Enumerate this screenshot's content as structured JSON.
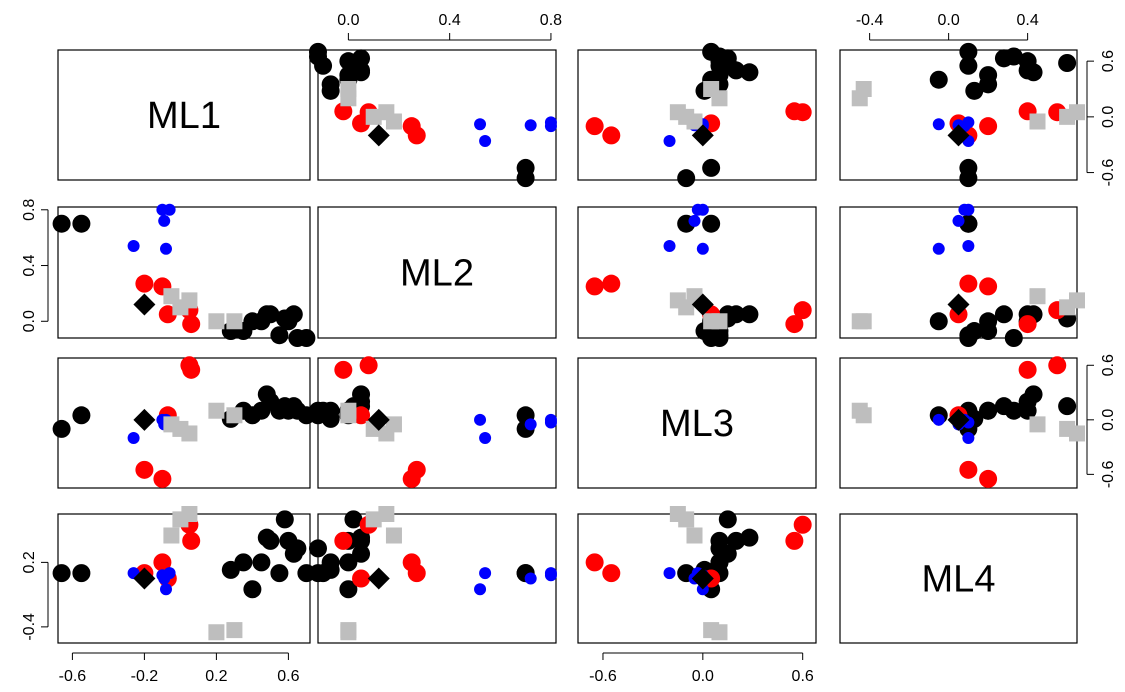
{
  "chart_data": {
    "type": "scatter",
    "title": "",
    "variables": [
      "ML1",
      "ML2",
      "ML3",
      "ML4"
    ],
    "axis_ranges": {
      "ML1": [
        -0.68,
        0.72
      ],
      "ML2": [
        -0.12,
        0.82
      ],
      "ML3": [
        -0.75,
        0.68
      ],
      "ML4": [
        -0.55,
        0.65
      ]
    },
    "axis_ticks": {
      "ML1": {
        "values": [
          -0.6,
          -0.2,
          0.2,
          0.6
        ],
        "labels": [
          "-0.6",
          "-0.2",
          "0.2",
          "0.6"
        ]
      },
      "ML2": {
        "values": [
          0.0,
          0.4,
          0.8
        ],
        "labels": [
          "0.0",
          "0.4",
          "0.8"
        ]
      },
      "ML3": {
        "values": [
          -0.6,
          0.0,
          0.6
        ],
        "labels": [
          "-0.6",
          "0.0",
          "0.6"
        ]
      },
      "ML4": {
        "values": [
          -0.4,
          0.2
        ],
        "labels": [
          "-0.4",
          "0.2"
        ]
      }
    },
    "top_ticks": {
      "ML2": {
        "values": [
          0.0,
          0.4,
          0.8
        ],
        "labels": [
          "0.0",
          "0.4",
          "0.8"
        ]
      },
      "ML4": {
        "values": [
          -0.4,
          0.0,
          0.4
        ],
        "labels": [
          "-0.4",
          "0.0",
          "0.4"
        ]
      }
    },
    "right_ticks": {
      "ML1": {
        "values": [
          -0.6,
          0.0,
          0.6
        ],
        "labels": [
          "-0.6",
          "0.0",
          "0.6"
        ]
      },
      "ML3": {
        "values": [
          -0.6,
          0.0,
          0.6
        ],
        "labels": [
          "-0.6",
          "0.0",
          "0.6"
        ]
      }
    },
    "grid": false,
    "legend": "none",
    "groups": [
      {
        "color": "#000000",
        "shape": "circle",
        "size": "large"
      },
      {
        "color": "#ff0000",
        "shape": "circle",
        "size": "large"
      },
      {
        "color": "#0000ff",
        "shape": "circle",
        "size": "small"
      },
      {
        "color": "#bebebe",
        "shape": "square",
        "size": "large"
      },
      {
        "color": "#000000",
        "shape": "diamond",
        "size": "large"
      }
    ],
    "points": [
      {
        "group": 0,
        "ML1": -0.66,
        "ML2": 0.7,
        "ML3": -0.1,
        "ML4": 0.1
      },
      {
        "group": 0,
        "ML1": -0.55,
        "ML2": 0.7,
        "ML3": 0.05,
        "ML4": 0.1
      },
      {
        "group": 0,
        "ML1": 0.28,
        "ML2": -0.07,
        "ML3": 0.01,
        "ML4": 0.13
      },
      {
        "group": 0,
        "ML1": 0.45,
        "ML2": 0.0,
        "ML3": 0.1,
        "ML4": 0.2
      },
      {
        "group": 0,
        "ML1": 0.5,
        "ML2": 0.05,
        "ML3": 0.2,
        "ML4": 0.4
      },
      {
        "group": 0,
        "ML1": 0.6,
        "ML2": 0.0,
        "ML3": 0.1,
        "ML4": 0.4
      },
      {
        "group": 0,
        "ML1": 0.63,
        "ML2": 0.05,
        "ML3": 0.15,
        "ML4": 0.28
      },
      {
        "group": 0,
        "ML1": 0.65,
        "ML2": -0.12,
        "ML3": 0.1,
        "ML4": 0.33
      },
      {
        "group": 0,
        "ML1": 0.7,
        "ML2": -0.12,
        "ML3": 0.05,
        "ML4": 0.1
      },
      {
        "group": 0,
        "ML1": 0.35,
        "ML2": -0.07,
        "ML3": 0.1,
        "ML4": 0.2
      },
      {
        "group": 0,
        "ML1": 0.48,
        "ML2": 0.05,
        "ML3": 0.28,
        "ML4": 0.43
      },
      {
        "group": 0,
        "ML1": 0.58,
        "ML2": 0.02,
        "ML3": 0.15,
        "ML4": 0.6
      },
      {
        "group": 0,
        "ML1": 0.4,
        "ML2": 0.0,
        "ML3": 0.05,
        "ML4": -0.05
      },
      {
        "group": 0,
        "ML1": 0.55,
        "ML2": -0.1,
        "ML3": 0.1,
        "ML4": 0.1
      },
      {
        "group": 1,
        "ML1": -0.2,
        "ML2": 0.27,
        "ML3": -0.55,
        "ML4": 0.1
      },
      {
        "group": 1,
        "ML1": -0.1,
        "ML2": 0.25,
        "ML3": -0.65,
        "ML4": 0.2
      },
      {
        "group": 1,
        "ML1": 0.05,
        "ML2": 0.08,
        "ML3": 0.6,
        "ML4": 0.55
      },
      {
        "group": 1,
        "ML1": 0.06,
        "ML2": -0.02,
        "ML3": 0.55,
        "ML4": 0.4
      },
      {
        "group": 1,
        "ML1": -0.07,
        "ML2": 0.05,
        "ML3": 0.05,
        "ML4": 0.05
      },
      {
        "group": 2,
        "ML1": -0.26,
        "ML2": 0.54,
        "ML3": -0.2,
        "ML4": 0.1
      },
      {
        "group": 2,
        "ML1": -0.1,
        "ML2": 0.8,
        "ML3": 0.0,
        "ML4": 0.08
      },
      {
        "group": 2,
        "ML1": -0.09,
        "ML2": 0.72,
        "ML3": -0.05,
        "ML4": 0.05
      },
      {
        "group": 2,
        "ML1": -0.08,
        "ML2": 0.52,
        "ML3": 0.0,
        "ML4": -0.05
      },
      {
        "group": 2,
        "ML1": -0.06,
        "ML2": 0.8,
        "ML3": -0.03,
        "ML4": 0.1
      },
      {
        "group": 3,
        "ML1": -0.05,
        "ML2": 0.18,
        "ML3": -0.05,
        "ML4": 0.45
      },
      {
        "group": 3,
        "ML1": 0.0,
        "ML2": 0.1,
        "ML3": -0.1,
        "ML4": 0.6
      },
      {
        "group": 3,
        "ML1": 0.05,
        "ML2": 0.15,
        "ML3": -0.15,
        "ML4": 0.65
      },
      {
        "group": 3,
        "ML1": 0.2,
        "ML2": 0.0,
        "ML3": 0.1,
        "ML4": -0.45
      },
      {
        "group": 3,
        "ML1": 0.3,
        "ML2": 0.0,
        "ML3": 0.05,
        "ML4": -0.43
      },
      {
        "group": 4,
        "ML1": -0.2,
        "ML2": 0.12,
        "ML3": 0.0,
        "ML4": 0.05
      }
    ],
    "labels": {
      "ML1": "ML1",
      "ML2": "ML2",
      "ML3": "ML3",
      "ML4": "ML4"
    }
  }
}
